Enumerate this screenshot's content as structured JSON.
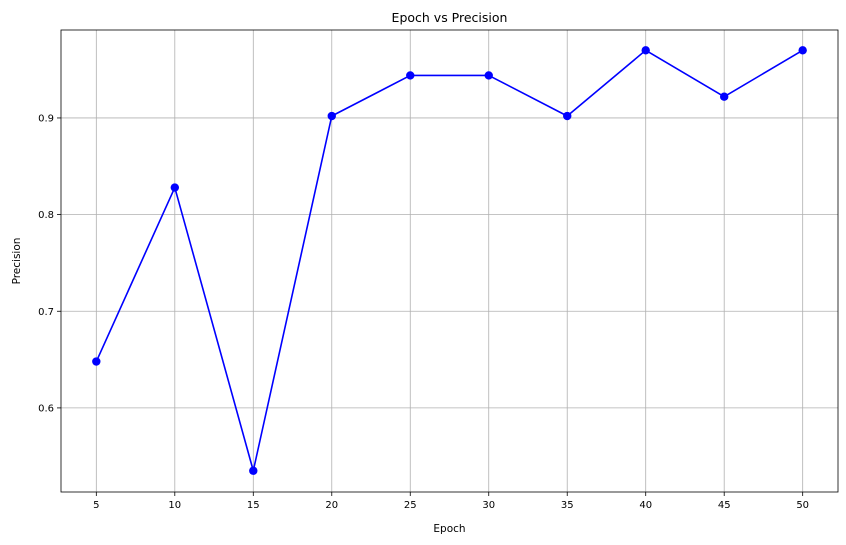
{
  "chart_data": {
    "type": "line",
    "title": "Epoch vs Precision",
    "xlabel": "Epoch",
    "ylabel": "Precision",
    "x": [
      5,
      10,
      15,
      20,
      25,
      30,
      35,
      40,
      45,
      50
    ],
    "xticks": [
      5,
      10,
      15,
      20,
      25,
      30,
      35,
      40,
      45,
      50
    ],
    "yticks": [
      0.6,
      0.7,
      0.8,
      0.9
    ],
    "ytick_labels": [
      "0.6",
      "0.7",
      "0.8",
      "0.9"
    ],
    "xlim": [
      2.75,
      52.25
    ],
    "ylim": [
      0.513,
      0.991
    ],
    "grid": true,
    "series": [
      {
        "values": [
          0.648,
          0.828,
          0.535,
          0.902,
          0.944,
          0.944,
          0.902,
          0.97,
          0.922,
          0.97
        ],
        "color": "#0000ff",
        "marker": "circle"
      }
    ]
  }
}
